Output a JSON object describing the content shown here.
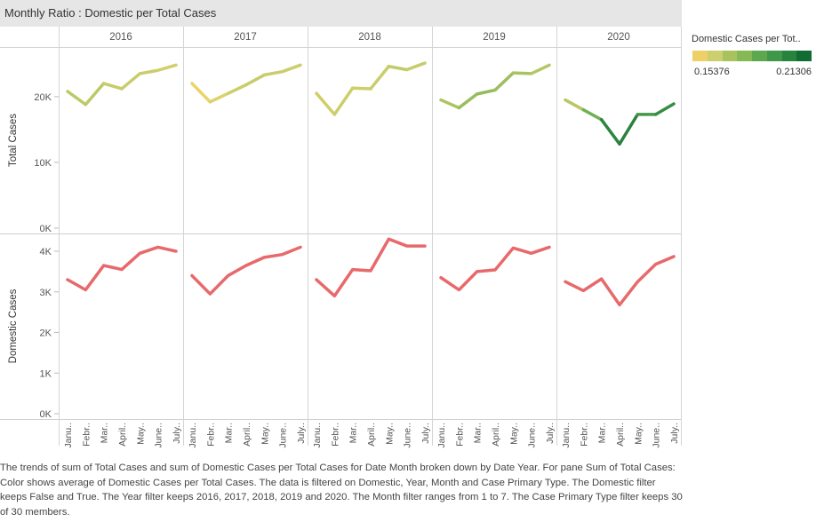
{
  "title": "Monthly Ratio : Domestic per Total Cases",
  "legend": {
    "title": "Domestic Cases per Tot..",
    "min_label": "0.15376",
    "max_label": "0.21306",
    "colors": [
      "#edd066",
      "#cdce6e",
      "#a8c35e",
      "#84b955",
      "#5da74e",
      "#3f9748",
      "#27843f",
      "#126b32"
    ]
  },
  "caption": "The trends of sum of Total Cases and sum of Domestic Cases per Total Cases for Date Month broken down by Date Year.  For pane Sum of Total Cases:  Color shows average of Domestic Cases per Total Cases. The data is filtered on Domestic, Year, Month and Case Primary Type. The Domestic filter keeps False and True. The Year filter keeps 2016, 2017, 2018, 2019 and 2020. The Month filter ranges from 1 to 7. The Case Primary Type filter keeps 30 of 30 members.",
  "chart_data": {
    "type": "line",
    "columns": [
      "2016",
      "2017",
      "2018",
      "2019",
      "2020"
    ],
    "months": [
      "Janu..",
      "Febr..",
      "Mar..",
      "April..",
      "May..",
      "June..",
      "July.."
    ],
    "rows": [
      {
        "ylabel": "Total Cases",
        "ylim": [
          0,
          27000
        ],
        "ticks": [
          0,
          10000,
          20000
        ],
        "tick_labels": [
          "0K",
          "10K",
          "20K"
        ],
        "colored_by_ratio": true,
        "series": [
          {
            "year": "2016",
            "values": [
              20800,
              18800,
              22000,
              21200,
              23500,
              24000,
              24800
            ],
            "ratio": [
              0.17,
              0.172,
              0.17,
              0.168,
              0.168,
              0.169,
              0.161
            ]
          },
          {
            "year": "2017",
            "values": [
              22000,
              19200,
              20500,
              21800,
              23300,
              23800,
              24800
            ],
            "ratio": [
              0.154,
              0.157,
              0.165,
              0.17,
              0.168,
              0.168,
              0.167
            ]
          },
          {
            "year": "2018",
            "values": [
              20500,
              17300,
              21300,
              21200,
              24600,
              24100,
              25100
            ],
            "ratio": [
              0.164,
              0.168,
              0.167,
              0.166,
              0.17,
              0.17,
              0.168
            ]
          },
          {
            "year": "2019",
            "values": [
              19500,
              18300,
              20400,
              21000,
              23600,
              23500,
              24800
            ],
            "ratio": [
              0.172,
              0.176,
              0.18,
              0.178,
              0.176,
              0.174,
              0.171
            ]
          },
          {
            "year": "2020",
            "values": [
              19500,
              18000,
              16500,
              12800,
              17300,
              17300,
              18900
            ],
            "ratio": [
              0.168,
              0.176,
              0.196,
              0.213,
              0.198,
              0.196,
              0.207
            ]
          }
        ]
      },
      {
        "ylabel": "Domestic Cases",
        "ylim": [
          0,
          4350
        ],
        "ticks": [
          0,
          1000,
          2000,
          3000,
          4000
        ],
        "tick_labels": [
          "0K",
          "1K",
          "2K",
          "3K",
          "4K"
        ],
        "colored_by_ratio": false,
        "line_color": "#e8696b",
        "series": [
          {
            "year": "2016",
            "values": [
              3300,
              3050,
              3650,
              3550,
              3950,
              4100,
              4000
            ]
          },
          {
            "year": "2017",
            "values": [
              3400,
              2950,
              3400,
              3650,
              3850,
              3920,
              4100
            ]
          },
          {
            "year": "2018",
            "values": [
              3300,
              2900,
              3550,
              3520,
              4300,
              4130,
              4130
            ]
          },
          {
            "year": "2019",
            "values": [
              3350,
              3050,
              3500,
              3540,
              4080,
              3950,
              4100
            ]
          },
          {
            "year": "2020",
            "values": [
              3250,
              3030,
              3320,
              2680,
              3250,
              3680,
              3870
            ]
          }
        ]
      }
    ]
  }
}
